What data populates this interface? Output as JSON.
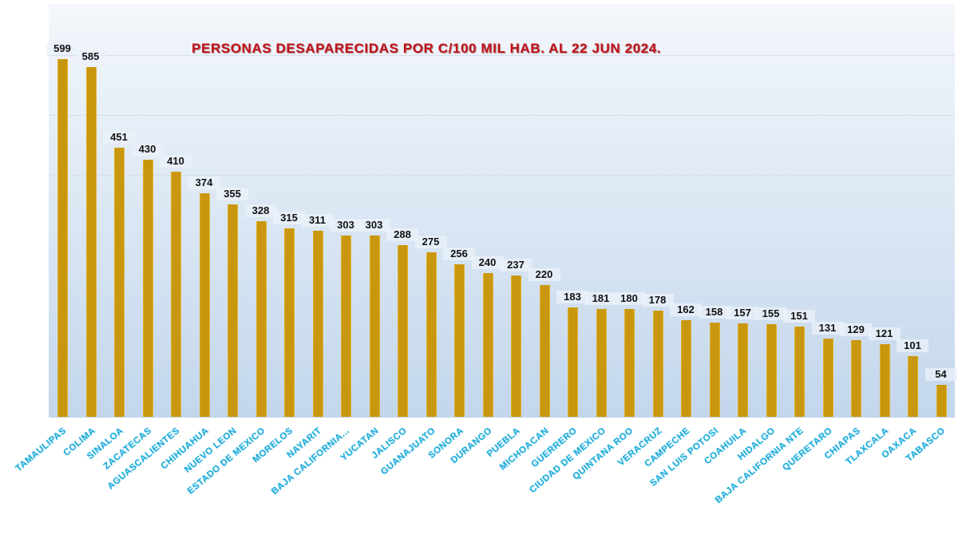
{
  "chart_data": {
    "type": "bar",
    "title": "PERSONAS DESAPARECIDAS  POR C/100 MIL HAB. AL 22 JUN 2024.",
    "xlabel": "",
    "ylabel": "",
    "ylim": [
      0,
      600
    ],
    "grid": true,
    "legend": null,
    "categories": [
      "TAMAULIPAS",
      "COLIMA",
      "SINALOA",
      "ZACATECAS",
      "AGUASCALIENTES",
      "CHIHUAHUA",
      "NUEVO LEON",
      "ESTADO DE MEXICO",
      "MORELOS",
      "NAYARIT",
      "BAJA CALIFORNIA...",
      "YUCATAN",
      "JALISCO",
      "GUANAJUATO",
      "SONORA",
      "DURANGO",
      "PUEBLA",
      "MICHOACAN",
      "GUERRERO",
      "CIUDAD DE MEXICO",
      "QUINTANA ROO",
      "VERACRUZ",
      "CAMPECHE",
      "SAN LUIS POTOSI",
      "COAHUILA",
      "HIDALGO",
      "BAJA CALIFORNIA NTE",
      "QUERETARO",
      "CHIAPAS",
      "TLAXCALA",
      "OAXACA",
      "TABASCO"
    ],
    "values": [
      599,
      585,
      451,
      430,
      410,
      374,
      355,
      328,
      315,
      311,
      303,
      303,
      288,
      275,
      256,
      240,
      237,
      220,
      183,
      181,
      180,
      178,
      162,
      158,
      157,
      155,
      151,
      131,
      129,
      121,
      101,
      54
    ],
    "colors": {
      "bar": "#c9970e",
      "title": "#c0121a",
      "category_label": "#1fa9d6",
      "value_label": "#111111"
    }
  }
}
